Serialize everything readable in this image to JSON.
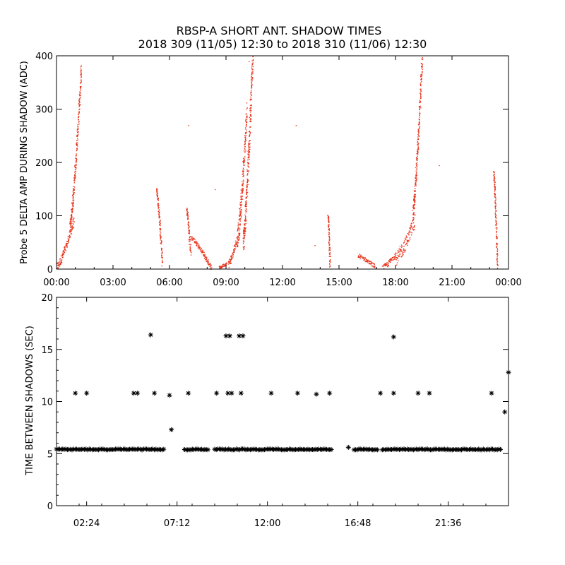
{
  "title_line1": "RBSP-A SHORT ANT. SHADOW TIMES",
  "title_line2": "2018 309 (11/05) 12:30 to 2018 310 (11/06) 12:30",
  "colors": {
    "top_points": "#e8341c",
    "bottom_points": "#000000",
    "axes": "#000000"
  },
  "chart_data": [
    {
      "type": "scatter",
      "ylabel": "Probe 5 DELTA AMP DURING SHADOW (ADC)",
      "xlim_hours": [
        0,
        24
      ],
      "ylim": [
        0,
        400
      ],
      "x_ticks": [
        {
          "h": 0,
          "label": "00:00"
        },
        {
          "h": 3,
          "label": "03:00"
        },
        {
          "h": 6,
          "label": "06:00"
        },
        {
          "h": 9,
          "label": "09:00"
        },
        {
          "h": 12,
          "label": "12:00"
        },
        {
          "h": 15,
          "label": "15:00"
        },
        {
          "h": 18,
          "label": "18:00"
        },
        {
          "h": 21,
          "label": "21:00"
        },
        {
          "h": 24,
          "label": "00:00"
        }
      ],
      "y_ticks": [
        0,
        100,
        200,
        300,
        400
      ],
      "marker": "dot",
      "segments": [
        {
          "x0": 0.0,
          "x1": 0.9,
          "y0": 5,
          "y1": 90,
          "spread": 15
        },
        {
          "x0": 0.7,
          "x1": 1.3,
          "y0": 80,
          "y1": 380,
          "spread": 25
        },
        {
          "x0": 5.3,
          "x1": 5.6,
          "y0": 150,
          "y1": 10,
          "spread": 10
        },
        {
          "x0": 6.9,
          "x1": 7.1,
          "y0": 110,
          "y1": 30,
          "spread": 20
        },
        {
          "x0": 7.1,
          "x1": 8.2,
          "y0": 60,
          "y1": 3,
          "spread": 8
        },
        {
          "x0": 8.6,
          "x1": 9.0,
          "y0": 3,
          "y1": 12,
          "spread": 5
        },
        {
          "x0": 9.1,
          "x1": 9.6,
          "y0": 10,
          "y1": 60,
          "spread": 15
        },
        {
          "x0": 9.6,
          "x1": 10.1,
          "y0": 60,
          "y1": 300,
          "spread": 40
        },
        {
          "x0": 9.9,
          "x1": 10.4,
          "y0": 50,
          "y1": 400,
          "spread": 40
        },
        {
          "x0": 14.4,
          "x1": 14.5,
          "y0": 100,
          "y1": 5,
          "spread": 5
        },
        {
          "x0": 16.0,
          "x1": 16.9,
          "y0": 25,
          "y1": 5,
          "spread": 8
        },
        {
          "x0": 17.3,
          "x1": 18.0,
          "y0": 3,
          "y1": 30,
          "spread": 10
        },
        {
          "x0": 18.0,
          "x1": 19.0,
          "y0": 20,
          "y1": 90,
          "spread": 25
        },
        {
          "x0": 18.9,
          "x1": 19.4,
          "y0": 100,
          "y1": 400,
          "spread": 30
        },
        {
          "x0": 23.2,
          "x1": 23.4,
          "y0": 180,
          "y1": 5,
          "spread": 10
        }
      ],
      "isolated_points": [
        {
          "x": 12.7,
          "y": 270
        },
        {
          "x": 10.2,
          "y": 390
        },
        {
          "x": 20.3,
          "y": 195
        },
        {
          "x": 13.7,
          "y": 45
        },
        {
          "x": 7.0,
          "y": 270
        },
        {
          "x": 8.4,
          "y": 150
        }
      ]
    },
    {
      "type": "scatter",
      "ylabel": "TIME BETWEEN SHADOWS (SEC)",
      "xlim_hours": [
        0,
        24
      ],
      "ylim": [
        0,
        20
      ],
      "x_ticks": [
        {
          "h": 1.6,
          "label": "02:24"
        },
        {
          "h": 6.4,
          "label": "07:12"
        },
        {
          "h": 11.2,
          "label": "12:00"
        },
        {
          "h": 16.0,
          "label": "16:48"
        },
        {
          "h": 20.8,
          "label": "21:36"
        }
      ],
      "y_ticks": [
        0,
        5,
        10,
        15,
        20
      ],
      "marker": "asterisk",
      "baseline_value": 5.4,
      "baseline_ranges": [
        [
          0.0,
          5.7
        ],
        [
          6.8,
          8.1
        ],
        [
          8.4,
          14.6
        ],
        [
          15.8,
          17.1
        ],
        [
          17.3,
          23.6
        ]
      ],
      "points": [
        {
          "x": 1.0,
          "y": 10.8
        },
        {
          "x": 1.6,
          "y": 10.8
        },
        {
          "x": 4.1,
          "y": 10.8
        },
        {
          "x": 4.3,
          "y": 10.8
        },
        {
          "x": 5.0,
          "y": 16.4
        },
        {
          "x": 5.2,
          "y": 10.8
        },
        {
          "x": 6.0,
          "y": 10.6
        },
        {
          "x": 6.1,
          "y": 7.3
        },
        {
          "x": 7.0,
          "y": 10.8
        },
        {
          "x": 8.5,
          "y": 10.8
        },
        {
          "x": 9.0,
          "y": 16.3
        },
        {
          "x": 9.1,
          "y": 10.8
        },
        {
          "x": 9.2,
          "y": 16.3
        },
        {
          "x": 9.3,
          "y": 10.8
        },
        {
          "x": 9.7,
          "y": 16.3
        },
        {
          "x": 9.8,
          "y": 10.8
        },
        {
          "x": 9.9,
          "y": 16.3
        },
        {
          "x": 11.4,
          "y": 10.8
        },
        {
          "x": 12.8,
          "y": 10.8
        },
        {
          "x": 13.8,
          "y": 10.7
        },
        {
          "x": 14.5,
          "y": 10.8
        },
        {
          "x": 15.5,
          "y": 5.6
        },
        {
          "x": 17.2,
          "y": 10.8
        },
        {
          "x": 17.9,
          "y": 16.2
        },
        {
          "x": 17.9,
          "y": 10.8
        },
        {
          "x": 19.2,
          "y": 10.8
        },
        {
          "x": 19.8,
          "y": 10.8
        },
        {
          "x": 23.1,
          "y": 10.8
        },
        {
          "x": 23.8,
          "y": 9.0
        },
        {
          "x": 24.0,
          "y": 12.8
        }
      ]
    }
  ]
}
